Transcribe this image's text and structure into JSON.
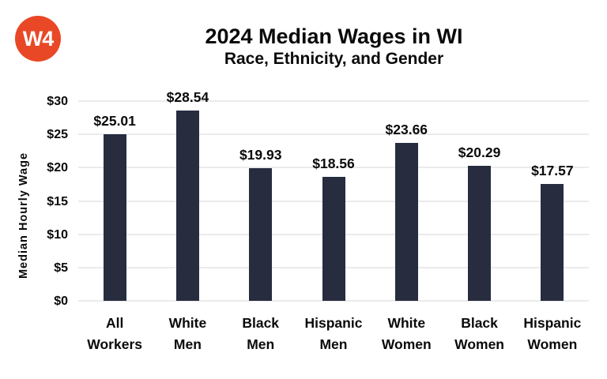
{
  "logo": {
    "text": "W4",
    "bg_color": "#E94826",
    "text_color": "#FFFFFF"
  },
  "header": {
    "title": "2024 Median Wages in WI",
    "subtitle": "Race, Ethnicity, and Gender"
  },
  "chart_data": {
    "type": "bar",
    "title": "2024 Median Wages in WI",
    "subtitle": "Race, Ethnicity, and Gender",
    "categories": [
      "All Workers",
      "White Men",
      "Black Men",
      "Hispanic Men",
      "White Women",
      "Black Women",
      "Hispanic Women"
    ],
    "values": [
      25.01,
      28.54,
      19.93,
      18.56,
      23.66,
      20.29,
      17.57
    ],
    "data_labels": [
      "$25.01",
      "$28.54",
      "$19.93",
      "$18.56",
      "$23.66",
      "$20.29",
      "$17.57"
    ],
    "xlabel": "",
    "ylabel": "Median Hourly Wage",
    "ylim": [
      0,
      30
    ],
    "yticks": [
      0,
      5,
      10,
      15,
      20,
      25,
      30
    ],
    "ytick_labels": [
      "$0",
      "$5",
      "$10",
      "$15",
      "$20",
      "$25",
      "$30"
    ],
    "grid": true,
    "legend": false,
    "bar_color": "#272D3F",
    "grid_color": "#EBEBEB",
    "text_color": "#0A0A0A"
  }
}
